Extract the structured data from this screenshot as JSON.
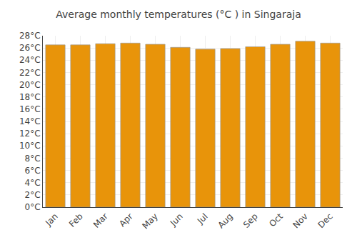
{
  "chart_data": {
    "type": "bar",
    "title": "Average monthly temperatures (°C ) in Singaraja",
    "categories": [
      "Jan",
      "Feb",
      "Mar",
      "Apr",
      "May",
      "Jun",
      "Jul",
      "Aug",
      "Sep",
      "Oct",
      "Nov",
      "Dec"
    ],
    "values": [
      26.5,
      26.5,
      26.7,
      26.8,
      26.6,
      26.1,
      25.8,
      25.9,
      26.2,
      26.6,
      27.1,
      26.8
    ],
    "color": "#E8940A",
    "ylim": [
      0,
      28
    ],
    "yticks": [
      {
        "value": 0,
        "label": "0°C"
      },
      {
        "value": 2,
        "label": "2°C"
      },
      {
        "value": 4,
        "label": "4°C"
      },
      {
        "value": 6,
        "label": "6°C"
      },
      {
        "value": 8,
        "label": "8°C"
      },
      {
        "value": 10,
        "label": "10°C"
      },
      {
        "value": 12,
        "label": "12°C"
      },
      {
        "value": 14,
        "label": "14°C"
      },
      {
        "value": 16,
        "label": "16°C"
      },
      {
        "value": 18,
        "label": "18°C"
      },
      {
        "value": 20,
        "label": "20°C"
      },
      {
        "value": 22,
        "label": "22°C"
      },
      {
        "value": 24,
        "label": "24°C"
      },
      {
        "value": 26,
        "label": "26°C"
      },
      {
        "value": 28,
        "label": "28°C"
      }
    ],
    "grid": true
  }
}
